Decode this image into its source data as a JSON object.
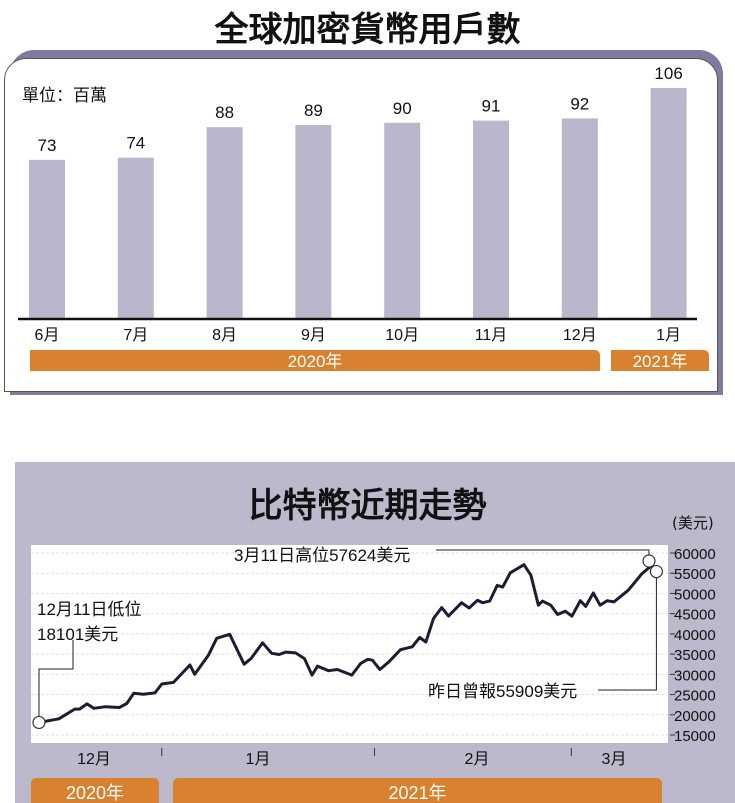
{
  "chart_data": [
    {
      "type": "bar",
      "title": "全球加密貨幣用戶數",
      "unit_label": "單位：百萬",
      "categories": [
        "6月",
        "7月",
        "8月",
        "9月",
        "10月",
        "11月",
        "12月",
        "1月"
      ],
      "values": [
        73,
        74,
        88,
        89,
        90,
        91,
        92,
        106
      ],
      "year_groups": [
        {
          "label": "2020年",
          "span": 7
        },
        {
          "label": "2021年",
          "span": 1
        }
      ],
      "ylim": [
        0,
        106
      ],
      "colors": {
        "bar": "#b9b7cc",
        "year_band": "#d8812f",
        "frame": "#7f7aa0"
      }
    },
    {
      "type": "line",
      "title": "比特幣近期走勢",
      "ylabel": "(美元)",
      "ylim": [
        15000,
        60000
      ],
      "yticks": [
        60000,
        55000,
        50000,
        45000,
        40000,
        35000,
        30000,
        25000,
        20000,
        15000
      ],
      "xlabel_months": [
        {
          "label": "12月",
          "day": 8
        },
        {
          "label": "1月",
          "day": 28
        },
        {
          "label": "2月",
          "day": 65
        },
        {
          "label": "3月",
          "day": 83
        }
      ],
      "month_separators": [
        17.9,
        48.9,
        77.6
      ],
      "x_range_days": [
        0,
        92
      ],
      "year_groups": [
        {
          "label": "2020年",
          "from": 0,
          "to": 17.9
        },
        {
          "label": "2021年",
          "from": 19.5,
          "to": 90.5
        }
      ],
      "x_days_since_dec11": [
        0,
        2.9,
        5.2,
        5.9,
        7.0,
        8.0,
        9.7,
        11.7,
        12.8,
        13.8,
        15.2,
        16.9,
        17.9,
        19.6,
        22.0,
        22.7,
        24.7,
        25.9,
        27.8,
        29.9,
        30.9,
        32.6,
        33.9,
        35.0,
        36.0,
        37.4,
        38.7,
        39.8,
        40.6,
        42.2,
        43.5,
        45.6,
        46.9,
        47.9,
        48.6,
        49.7,
        51.0,
        52.7,
        54.4,
        55.5,
        56.4,
        57.5,
        58.7,
        59.7,
        61.6,
        62.7,
        63.9,
        64.7,
        65.7,
        66.8,
        67.6,
        68.7,
        70.7,
        71.7,
        72.8,
        73.4,
        74.6,
        75.6,
        76.7,
        77.7,
        78.9,
        79.7,
        80.8,
        81.8,
        82.8,
        83.8,
        85.9,
        87.9,
        89.3,
        90
      ],
      "values": [
        18101,
        19000,
        21400,
        21400,
        22700,
        21600,
        22000,
        21800,
        22800,
        25300,
        25100,
        25400,
        27600,
        28000,
        32300,
        30000,
        34700,
        38900,
        39900,
        32500,
        33900,
        37800,
        35200,
        34900,
        35500,
        35300,
        33900,
        29800,
        32000,
        30900,
        31200,
        29800,
        32700,
        33700,
        33500,
        31200,
        33100,
        36100,
        36800,
        39100,
        38000,
        43800,
        46500,
        44400,
        47700,
        46400,
        48300,
        47700,
        48100,
        52000,
        51600,
        55100,
        57100,
        54500,
        47100,
        48100,
        47100,
        44800,
        45600,
        44400,
        48200,
        46800,
        50100,
        47100,
        48200,
        47900,
        50800,
        54900,
        56900,
        55909
      ],
      "annotations": [
        {
          "text1": "12月11日低位",
          "text2": "18101美元",
          "day": 0,
          "value": 18101
        },
        {
          "text1": "3月11日高位57624美元",
          "day": 89.2,
          "value": 57624
        },
        {
          "text1": "昨日曾報55909美元",
          "day": 90,
          "value": 55909
        }
      ],
      "colors": {
        "line": "#1c1d33",
        "panel": "#bdb9cd",
        "year_band": "#d8812f"
      }
    }
  ]
}
